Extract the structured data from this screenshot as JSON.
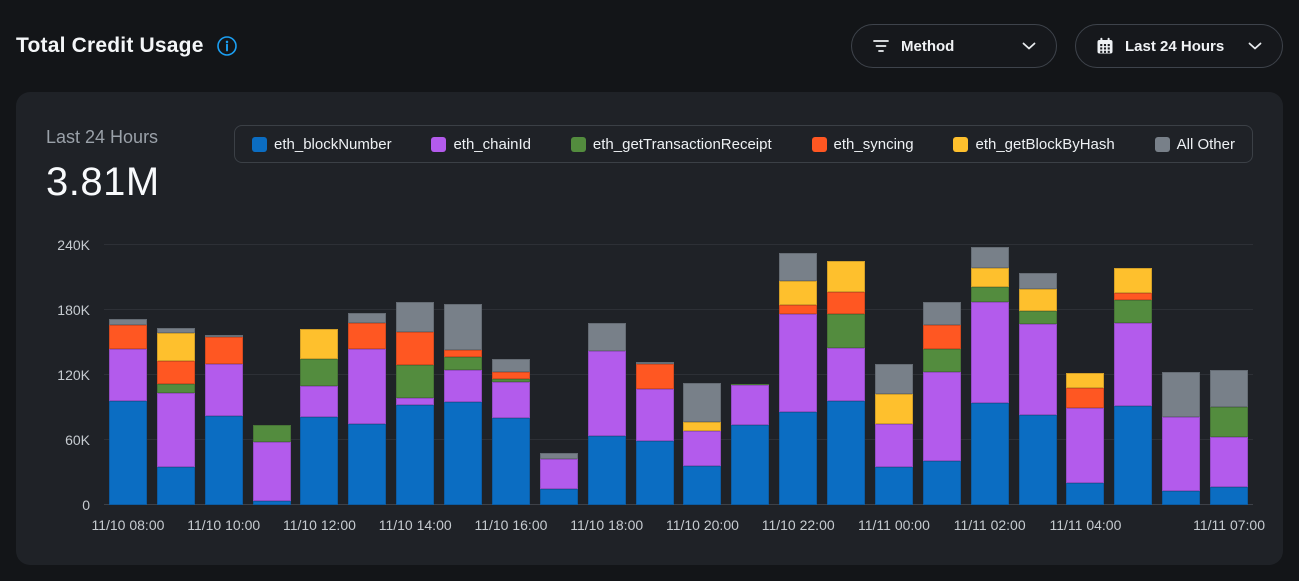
{
  "header": {
    "title": "Total Credit Usage"
  },
  "controls": {
    "method_dropdown": {
      "label": "Method",
      "icon": "filter-icon"
    },
    "range_dropdown": {
      "label": "Last 24 Hours",
      "icon": "calendar-icon"
    }
  },
  "panel": {
    "period_label": "Last 24 Hours",
    "total_value": "3.81M"
  },
  "legend": {
    "items": [
      {
        "label": "eth_blockNumber",
        "color": "#0b6dc2"
      },
      {
        "label": "eth_chainId",
        "color": "#b35bec"
      },
      {
        "label": "eth_getTransactionReceipt",
        "color": "#538c3e"
      },
      {
        "label": "eth_syncing",
        "color": "#ff5722"
      },
      {
        "label": "eth_getBlockByHash",
        "color": "#fec02d"
      },
      {
        "label": "All Other",
        "color": "#788089"
      }
    ]
  },
  "chart_data": {
    "type": "bar",
    "stacked": true,
    "title": "Total Credit Usage",
    "subtitle": "Last 24 Hours",
    "total_label": "3.81M",
    "value_unit": "K credits",
    "ylim": [
      0,
      240
    ],
    "y_ticks": [
      "0",
      "60K",
      "120K",
      "180K",
      "240K"
    ],
    "grid": "horizontal",
    "legend_position": "top",
    "x_labels": [
      "11/10 08:00",
      "",
      "11/10 10:00",
      "",
      "11/10 12:00",
      "",
      "11/10 14:00",
      "",
      "11/10 16:00",
      "",
      "11/10 18:00",
      "",
      "11/10 20:00",
      "",
      "11/10 22:00",
      "",
      "11/11 00:00",
      "",
      "11/11 02:00",
      "",
      "11/11 04:00",
      "",
      "",
      "11/11 07:00"
    ],
    "series": [
      {
        "name": "eth_blockNumber",
        "color": "#0b6dc2",
        "values": [
          96,
          35,
          82,
          4,
          81,
          75,
          92,
          95,
          80,
          15,
          64,
          59,
          36,
          74,
          86,
          96,
          35,
          41,
          94,
          83,
          20,
          91,
          13,
          17
        ]
      },
      {
        "name": "eth_chainId",
        "color": "#b35bec",
        "values": [
          48,
          68,
          48,
          54,
          29,
          69,
          7,
          30,
          34,
          27,
          78,
          48,
          32,
          37,
          90,
          49,
          40,
          82,
          93,
          84,
          70,
          77,
          68,
          46
        ]
      },
      {
        "name": "eth_getTransactionReceipt",
        "color": "#538c3e",
        "values": [
          0,
          9,
          0,
          16,
          25,
          0,
          30,
          12,
          2,
          0,
          0,
          0,
          0,
          1,
          0,
          31,
          0,
          21,
          14,
          12,
          0,
          21,
          0,
          28
        ]
      },
      {
        "name": "eth_syncing",
        "color": "#ff5722",
        "values": [
          22,
          21,
          25,
          0,
          0,
          24,
          31,
          6,
          7,
          0,
          0,
          23,
          0,
          0,
          9,
          21,
          0,
          22,
          0,
          0,
          18,
          7,
          0,
          0
        ]
      },
      {
        "name": "eth_getBlockByHash",
        "color": "#fec02d",
        "values": [
          0,
          26,
          0,
          0,
          27,
          0,
          0,
          0,
          0,
          0,
          0,
          0,
          9,
          0,
          22,
          28,
          28,
          0,
          18,
          20,
          14,
          23,
          0,
          0
        ]
      },
      {
        "name": "All Other",
        "color": "#788089",
        "values": [
          6,
          4,
          2,
          0,
          0,
          9,
          27,
          43,
          12,
          6,
          26,
          2,
          36,
          0,
          26,
          0,
          27,
          21,
          19,
          15,
          0,
          0,
          42,
          34
        ]
      }
    ]
  }
}
